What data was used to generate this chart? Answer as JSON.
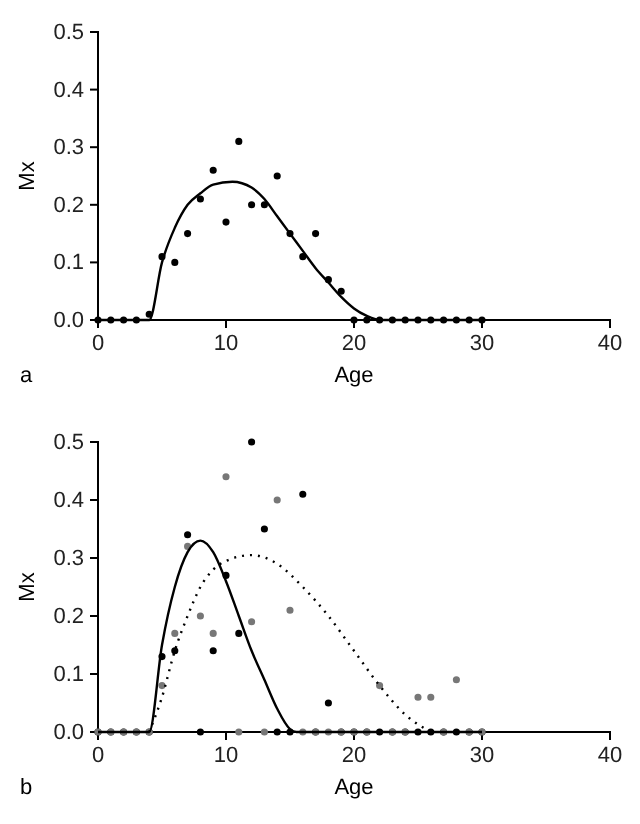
{
  "chart_data": [
    {
      "type": "scatter",
      "xlabel": "Age",
      "ylabel": "Mx",
      "annotations": [
        "a"
      ],
      "xlim": [
        0,
        40
      ],
      "ylim": [
        0,
        0.5
      ],
      "xticks": [
        0,
        10,
        20,
        30,
        40
      ],
      "yticks": [
        {
          "value": 0,
          "label": "0.0"
        },
        {
          "value": 0.1,
          "label": "0.1"
        },
        {
          "value": 0.2,
          "label": "0.2"
        },
        {
          "value": 0.3,
          "label": "0.3"
        },
        {
          "value": 0.4,
          "label": "0.4"
        },
        {
          "value": 0.5,
          "label": "0.5"
        }
      ],
      "grid": false,
      "series": [
        {
          "color": "#000000",
          "marker": "circle",
          "x": [
            0,
            1,
            2,
            3,
            4,
            5,
            6,
            7,
            8,
            9,
            10,
            11,
            12,
            13,
            14,
            15,
            16,
            17,
            18,
            19,
            20,
            21,
            22,
            23,
            24,
            25,
            26,
            27,
            28,
            29,
            30
          ],
          "values": [
            0,
            0,
            0,
            0,
            0.01,
            0.11,
            0.1,
            0.15,
            0.21,
            0.26,
            0.17,
            0.31,
            0.2,
            0.2,
            0.25,
            0.15,
            0.11,
            0.15,
            0.07,
            0.05,
            0,
            0,
            0,
            0,
            0,
            0,
            0,
            0,
            0,
            0,
            0
          ]
        },
        {
          "type": "line",
          "color": "#000000",
          "marker": "none",
          "line_style": "solid",
          "x": [
            0,
            4,
            5,
            6,
            7,
            8,
            9,
            10.5,
            12,
            13,
            14,
            15,
            16,
            17,
            18,
            19,
            20,
            21,
            22,
            30
          ],
          "values": [
            0,
            0,
            0.1,
            0.16,
            0.2,
            0.22,
            0.235,
            0.24,
            0.23,
            0.21,
            0.18,
            0.15,
            0.12,
            0.09,
            0.065,
            0.04,
            0.02,
            0.007,
            0,
            0
          ]
        }
      ]
    },
    {
      "type": "scatter",
      "xlabel": "Age",
      "ylabel": "Mx",
      "annotations": [
        "b"
      ],
      "xlim": [
        0,
        40
      ],
      "ylim": [
        0,
        0.5
      ],
      "xticks": [
        0,
        10,
        20,
        30,
        40
      ],
      "yticks": [
        {
          "value": 0,
          "label": "0.0"
        },
        {
          "value": 0.1,
          "label": "0.1"
        },
        {
          "value": 0.2,
          "label": "0.2"
        },
        {
          "value": 0.3,
          "label": "0.3"
        },
        {
          "value": 0.4,
          "label": "0.4"
        },
        {
          "value": 0.5,
          "label": "0.5"
        }
      ],
      "grid": false,
      "series": [
        {
          "color": "#000000",
          "marker": "circle",
          "x": [
            0,
            1,
            2,
            3,
            4,
            5,
            6,
            7,
            8,
            9,
            10,
            11,
            12,
            13,
            14,
            15,
            16,
            17,
            18,
            19,
            20,
            21,
            22,
            23,
            24,
            25,
            26,
            27,
            28,
            29,
            30
          ],
          "values": [
            0,
            0,
            0,
            0,
            0,
            0.13,
            0.14,
            0.34,
            0,
            0.14,
            0.27,
            0.17,
            0.5,
            0.35,
            0,
            0,
            0.41,
            0,
            0.05,
            0,
            0,
            0,
            0,
            0,
            0,
            0,
            0,
            0,
            0,
            0,
            0
          ]
        },
        {
          "color": "#777777",
          "marker": "circle",
          "x": [
            0,
            1,
            2,
            3,
            4,
            5,
            6,
            7,
            8,
            9,
            10,
            11,
            12,
            13,
            14,
            15,
            16,
            17,
            18,
            19,
            20,
            21,
            22,
            23,
            24,
            25,
            26,
            27,
            28,
            29,
            30
          ],
          "values": [
            0,
            0,
            0,
            0,
            0,
            0.08,
            0.17,
            0.32,
            0.2,
            0.17,
            0.44,
            0,
            0.19,
            0,
            0.4,
            0.21,
            0,
            0,
            0,
            0,
            0,
            0,
            0.08,
            0,
            0,
            0.06,
            0.06,
            0,
            0.09,
            0,
            0
          ]
        },
        {
          "type": "line",
          "color": "#000000",
          "marker": "none",
          "line_style": "solid",
          "x": [
            0,
            4,
            5,
            6,
            7,
            8,
            9,
            10,
            11,
            12,
            13,
            14,
            15,
            15.5,
            30
          ],
          "values": [
            0,
            0,
            0.15,
            0.25,
            0.31,
            0.33,
            0.31,
            0.26,
            0.2,
            0.14,
            0.09,
            0.04,
            0.005,
            0,
            0
          ]
        },
        {
          "type": "line",
          "color": "#000000",
          "marker": "none",
          "line_style": "dotted",
          "x": [
            4,
            5,
            6,
            7,
            8,
            9,
            10,
            12,
            14,
            16,
            18,
            20,
            22,
            24,
            26
          ],
          "values": [
            0,
            0.06,
            0.14,
            0.2,
            0.25,
            0.28,
            0.295,
            0.305,
            0.29,
            0.25,
            0.2,
            0.14,
            0.08,
            0.03,
            0
          ]
        }
      ]
    }
  ]
}
